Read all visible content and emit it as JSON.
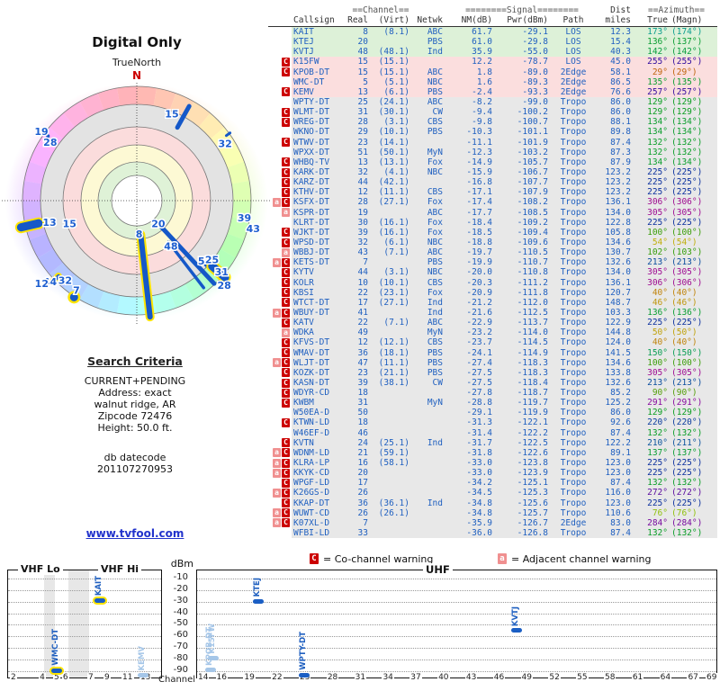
{
  "radar_head": {
    "title": "Digital Only",
    "north_label": "TrueNorth",
    "north_letter": "N"
  },
  "search": {
    "heading": "Search Criteria",
    "lines": [
      "CURRENT+PENDING",
      "Address: exact",
      "walnut ridge, AR",
      "Zipcode 72476",
      "Height: 50.0 ft."
    ],
    "datecode": [
      "db datecode",
      "201107270953"
    ]
  },
  "link": "www.tvfool.com",
  "legend": {
    "co_symbol": "C",
    "co_text": "= Co-channel warning",
    "adj_symbol": "a",
    "adj_text": "= Adjacent channel warning"
  },
  "spectrum": {
    "vhf_lo": "VHF Lo",
    "vhf_hi": "VHF Hi",
    "uhf": "UHF",
    "dbm": "dBm",
    "channel": "Channel"
  },
  "table": {
    "group": {
      "channel": "==Channel==",
      "signal": "========Signal========",
      "dist": "Dist",
      "azimuth": "==Azimuth=="
    },
    "cols": {
      "callsign": "Callsign",
      "real": "Real",
      "virt": "(Virt)",
      "netwk": "Netwk",
      "nm": "NM(dB)",
      "pwr": "Pwr(dBm)",
      "path": "Path",
      "miles": "miles",
      "true": "True",
      "magn": "(Magn)"
    }
  },
  "colors": {
    "text_blue": "#2060c0",
    "faded_blue": "#a5c6e8",
    "marker_blue": "#1a5ec4",
    "marker_outline_yellow": "#ffe400",
    "warn_co_bg": "#cc0000",
    "warn_adj_bg": "#f09090",
    "row_strong": "#ddf1d8",
    "row_weak": "#fbdede",
    "row_deep": "#e8e8e8",
    "link_blue": "#2233cc",
    "north_red": "#cc0000"
  },
  "chart_data": [
    {
      "type": "table",
      "title": "station list",
      "columns": [
        "Callsign",
        "Real",
        "(Virt)",
        "Netwk",
        "NM(dB)",
        "Pwr(dBm)",
        "Path",
        "miles",
        "True",
        "(Magn)",
        "band",
        "warnings"
      ],
      "rows": [
        [
          "KAIT",
          8,
          "8.1",
          "ABC",
          61.7,
          -29.1,
          "LOS",
          12.3,
          173,
          174,
          "s",
          ""
        ],
        [
          "KTEJ",
          20,
          "",
          "PBS",
          61.0,
          -29.8,
          "LOS",
          15.4,
          136,
          137,
          "s",
          ""
        ],
        [
          "KVTJ",
          48,
          "48.1",
          "Ind",
          35.9,
          -55.0,
          "LOS",
          40.3,
          142,
          142,
          "s",
          ""
        ],
        [
          "K15FW",
          15,
          "15.1",
          "",
          12.2,
          -78.7,
          "LOS",
          45.0,
          255,
          255,
          "w",
          "c"
        ],
        [
          "KPOB-DT",
          15,
          "15.1",
          "ABC",
          1.8,
          -89.0,
          "2Edge",
          58.1,
          29,
          29,
          "w",
          "c"
        ],
        [
          "WMC-DT",
          5,
          "5.1",
          "NBC",
          1.6,
          -89.3,
          "2Edge",
          86.5,
          135,
          135,
          "w",
          ""
        ],
        [
          "KEMV",
          13,
          "6.1",
          "PBS",
          -2.4,
          -93.3,
          "2Edge",
          76.6,
          257,
          257,
          "w",
          "c"
        ],
        [
          "WPTY-DT",
          25,
          "24.1",
          "ABC",
          -8.2,
          -99.0,
          "Tropo",
          86.0,
          129,
          129,
          "d",
          ""
        ],
        [
          "WLMT-DT",
          31,
          "30.1",
          "CW",
          -9.4,
          -100.2,
          "Tropo",
          86.0,
          129,
          129,
          "d",
          "c"
        ],
        [
          "WREG-DT",
          28,
          "3.1",
          "CBS",
          -9.8,
          -100.7,
          "Tropo",
          88.1,
          134,
          134,
          "d",
          "c"
        ],
        [
          "WKNO-DT",
          29,
          "10.1",
          "PBS",
          -10.3,
          -101.1,
          "Tropo",
          89.8,
          134,
          134,
          "d",
          ""
        ],
        [
          "WTWV-DT",
          23,
          "14.1",
          "",
          -11.1,
          -101.9,
          "Tropo",
          87.4,
          132,
          132,
          "d",
          "c"
        ],
        [
          "WPXX-DT",
          51,
          "50.1",
          "MyN",
          -12.3,
          -103.2,
          "Tropo",
          87.3,
          132,
          132,
          "d",
          ""
        ],
        [
          "WHBQ-TV",
          13,
          "13.1",
          "Fox",
          -14.9,
          -105.7,
          "Tropo",
          87.9,
          134,
          134,
          "d",
          "c"
        ],
        [
          "KARK-DT",
          32,
          "4.1",
          "NBC",
          -15.9,
          -106.7,
          "Tropo",
          123.2,
          225,
          225,
          "d",
          "c"
        ],
        [
          "KARZ-DT",
          44,
          "42.1",
          "",
          -16.8,
          -107.7,
          "Tropo",
          123.2,
          225,
          225,
          "d",
          "c"
        ],
        [
          "KTHV-DT",
          12,
          "11.1",
          "CBS",
          -17.1,
          -107.9,
          "Tropo",
          123.2,
          225,
          225,
          "d",
          "c"
        ],
        [
          "KSFX-DT",
          28,
          "27.1",
          "Fox",
          -17.4,
          -108.2,
          "Tropo",
          136.1,
          306,
          306,
          "d",
          "ac"
        ],
        [
          "KSPR-DT",
          19,
          "",
          "ABC",
          -17.7,
          -108.5,
          "Tropo",
          134.0,
          305,
          305,
          "d",
          "a"
        ],
        [
          "KLRT-DT",
          30,
          "16.1",
          "Fox",
          -18.4,
          -109.2,
          "Tropo",
          122.8,
          225,
          225,
          "d",
          ""
        ],
        [
          "WJKT-DT",
          39,
          "16.1",
          "Fox",
          -18.5,
          -109.4,
          "Tropo",
          105.8,
          100,
          100,
          "d",
          "c"
        ],
        [
          "WPSD-DT",
          32,
          "6.1",
          "NBC",
          -18.8,
          -109.6,
          "Tropo",
          134.6,
          54,
          54,
          "d",
          "c"
        ],
        [
          "WBBJ-DT",
          43,
          "7.1",
          "ABC",
          -19.7,
          -110.5,
          "Tropo",
          130.7,
          102,
          103,
          "d",
          "a"
        ],
        [
          "KETS-DT",
          7,
          "",
          "PBS",
          -19.9,
          -110.7,
          "Tropo",
          132.6,
          213,
          213,
          "d",
          "ac"
        ],
        [
          "KYTV",
          44,
          "3.1",
          "NBC",
          -20.0,
          -110.8,
          "Tropo",
          134.0,
          305,
          305,
          "d",
          "c"
        ],
        [
          "KOLR",
          10,
          "10.1",
          "CBS",
          -20.3,
          -111.2,
          "Tropo",
          136.1,
          306,
          306,
          "d",
          "c"
        ],
        [
          "KBSI",
          22,
          "23.1",
          "Fox",
          -20.9,
          -111.8,
          "Tropo",
          120.7,
          40,
          40,
          "d",
          "c"
        ],
        [
          "WTCT-DT",
          17,
          "27.1",
          "Ind",
          -21.2,
          -112.0,
          "Tropo",
          148.7,
          46,
          46,
          "d",
          "c"
        ],
        [
          "WBUY-DT",
          41,
          "",
          "Ind",
          -21.6,
          -112.5,
          "Tropo",
          103.3,
          136,
          136,
          "d",
          "ac"
        ],
        [
          "KATV",
          22,
          "7.1",
          "ABC",
          -22.9,
          -113.7,
          "Tropo",
          122.9,
          225,
          225,
          "d",
          "c"
        ],
        [
          "WDKA",
          49,
          "",
          "MyN",
          -23.2,
          -114.0,
          "Tropo",
          144.8,
          50,
          50,
          "d",
          "a"
        ],
        [
          "KFVS-DT",
          12,
          "12.1",
          "CBS",
          -23.7,
          -114.5,
          "Tropo",
          124.0,
          40,
          40,
          "d",
          "c"
        ],
        [
          "WMAV-DT",
          36,
          "18.1",
          "PBS",
          -24.1,
          -114.9,
          "Tropo",
          141.5,
          150,
          150,
          "d",
          "c"
        ],
        [
          "WLJT-DT",
          47,
          "11.1",
          "PBS",
          -27.4,
          -118.3,
          "Tropo",
          134.6,
          100,
          100,
          "d",
          "ac"
        ],
        [
          "KOZK-DT",
          23,
          "21.1",
          "PBS",
          -27.5,
          -118.3,
          "Tropo",
          133.8,
          305,
          305,
          "d",
          "c"
        ],
        [
          "KASN-DT",
          39,
          "38.1",
          "CW",
          -27.5,
          -118.4,
          "Tropo",
          132.6,
          213,
          213,
          "d",
          "c"
        ],
        [
          "WDYR-CD",
          18,
          "",
          "",
          -27.8,
          -118.7,
          "Tropo",
          85.2,
          90,
          90,
          "d",
          "c"
        ],
        [
          "KWBM",
          31,
          "",
          "MyN",
          -28.8,
          -119.7,
          "Tropo",
          125.2,
          291,
          291,
          "d",
          "c"
        ],
        [
          "W50EA-D",
          50,
          "",
          "",
          -29.1,
          -119.9,
          "Tropo",
          86.0,
          129,
          129,
          "d",
          ""
        ],
        [
          "KTWN-LD",
          18,
          "",
          "",
          -31.3,
          -122.1,
          "Tropo",
          92.6,
          220,
          220,
          "d",
          "c"
        ],
        [
          "W46EF-D",
          46,
          "",
          "",
          -31.4,
          -122.2,
          "Tropo",
          87.4,
          132,
          132,
          "d",
          ""
        ],
        [
          "KVTN",
          24,
          "25.1",
          "Ind",
          -31.7,
          -122.5,
          "Tropo",
          122.2,
          210,
          211,
          "d",
          "c"
        ],
        [
          "WDNM-LD",
          21,
          "59.1",
          "",
          -31.8,
          -122.6,
          "Tropo",
          89.1,
          137,
          137,
          "d",
          "ac"
        ],
        [
          "KLRA-LP",
          16,
          "58.1",
          "",
          -33.0,
          -123.8,
          "Tropo",
          123.0,
          225,
          225,
          "d",
          "ac"
        ],
        [
          "KKYK-CD",
          20,
          "",
          "",
          -33.0,
          -123.9,
          "Tropo",
          123.0,
          225,
          225,
          "d",
          "ac"
        ],
        [
          "WPGF-LD",
          17,
          "",
          "",
          -34.2,
          -125.1,
          "Tropo",
          87.4,
          132,
          132,
          "d",
          "c"
        ],
        [
          "K26GS-D",
          26,
          "",
          "",
          -34.5,
          -125.3,
          "Tropo",
          116.0,
          272,
          272,
          "d",
          "ac"
        ],
        [
          "KKAP-DT",
          36,
          "36.1",
          "Ind",
          -34.8,
          -125.6,
          "Tropo",
          123.0,
          225,
          225,
          "d",
          "c"
        ],
        [
          "WUWT-CD",
          26,
          "26.1",
          "",
          -34.8,
          -125.7,
          "Tropo",
          110.6,
          76,
          76,
          "d",
          "ac"
        ],
        [
          "K07XL-D",
          7,
          "",
          "",
          -35.9,
          -126.7,
          "2Edge",
          83.0,
          284,
          284,
          "d",
          "ac"
        ],
        [
          "WFBI-LD",
          33,
          "",
          "",
          -36.0,
          -126.8,
          "Tropo",
          87.4,
          132,
          132,
          "d",
          ""
        ]
      ]
    },
    {
      "type": "radar",
      "title": "Digital Only",
      "rings": {
        "outer": 127,
        "bands": [
          [
            107,
            "#e3e3e3"
          ],
          [
            82,
            "#fbdcdc"
          ],
          [
            62,
            "#fdf9d4"
          ],
          [
            43,
            "#dff2d7"
          ],
          [
            28,
            "#ffffff"
          ]
        ]
      },
      "spokes": [
        {
          "az": 173.5,
          "r0": 38,
          "r1": 130,
          "w": 6,
          "outline": true
        },
        {
          "az": 137,
          "r0": 40,
          "r1": 126,
          "w": 5,
          "outline": false
        },
        {
          "az": 142.5,
          "r0": 58,
          "r1": 122,
          "w": 3.5,
          "outline": false
        },
        {
          "az": 133,
          "r0": 98,
          "r1": 126,
          "w": 3.5,
          "outline": false
        },
        {
          "az": 131,
          "r0": 111,
          "r1": 130,
          "w": 9,
          "outline": true
        },
        {
          "az": 29,
          "r0": 93,
          "r1": 120,
          "w": 5,
          "outline": false
        },
        {
          "az": 257,
          "r0": 112,
          "r1": 132,
          "w": 9,
          "outline": true
        },
        {
          "az": 226,
          "r0": 121,
          "r1": 129,
          "w": 4,
          "outline": true
        },
        {
          "az": 54,
          "r0": 123,
          "r1": 128,
          "w": 3,
          "outline": false
        }
      ],
      "dots": [
        {
          "az": 213,
          "r": 128,
          "rad": 4.5,
          "outline": true
        },
        {
          "az": 100,
          "r": 126,
          "rad": 2.2,
          "outline": false
        },
        {
          "az": 103,
          "r": 133,
          "rad": 2,
          "outline": false
        },
        {
          "az": 305,
          "r": 134,
          "rad": 2,
          "outline": false
        },
        {
          "az": 306,
          "r": 122,
          "rad": 2,
          "outline": false
        }
      ],
      "labels": [
        {
          "t": "15",
          "az": 22,
          "r": 104
        },
        {
          "t": "32",
          "az": 57,
          "r": 117
        },
        {
          "t": "39",
          "az": 99,
          "r": 121
        },
        {
          "t": "43",
          "az": 103.5,
          "r": 133
        },
        {
          "t": "20",
          "az": 137,
          "r": 35
        },
        {
          "t": "48",
          "az": 143,
          "r": 63
        },
        {
          "t": "8",
          "az": 176,
          "r": 37
        },
        {
          "t": "5",
          "az": 133,
          "r": 98
        },
        {
          "t": "25",
          "az": 128,
          "r": 106
        },
        {
          "t": "31",
          "az": 130,
          "r": 123
        },
        {
          "t": "28",
          "az": 134,
          "r": 135
        },
        {
          "t": "7",
          "az": 214,
          "r": 120
        },
        {
          "t": "32",
          "az": 222,
          "r": 119
        },
        {
          "t": "44",
          "az": 227,
          "r": 132
        },
        {
          "t": "12",
          "az": 229,
          "r": 140
        },
        {
          "t": "13",
          "az": 256,
          "r": 100
        },
        {
          "t": "15",
          "az": 251,
          "r": 79
        },
        {
          "t": "28",
          "az": 304,
          "r": 116
        },
        {
          "t": "19",
          "az": 306,
          "r": 131
        }
      ]
    },
    {
      "type": "scatter",
      "band": "VHF",
      "ylabel": "dBm",
      "ylim": [
        -3,
        -95.5
      ],
      "yticks": [
        -10,
        -20,
        -30,
        -40,
        -50,
        -60,
        -70,
        -80,
        -90
      ],
      "x_ticks": [
        [
          2,
          0.035
        ],
        [
          4,
          0.224
        ],
        [
          5,
          0.318
        ],
        [
          6,
          0.376
        ],
        [
          7,
          0.541
        ],
        [
          9,
          0.647
        ],
        [
          11,
          0.765
        ],
        [
          13,
          0.882
        ]
      ],
      "gaps": [
        [
          0.235,
          0.305
        ],
        [
          0.395,
          0.527
        ]
      ],
      "points": [
        {
          "call": "WMC-DT",
          "ch": 5,
          "f": 0.318,
          "dbm": -89.3,
          "outline": true,
          "faded": false
        },
        {
          "call": "KAIT",
          "ch": 8,
          "f": 0.6,
          "dbm": -29.1,
          "outline": true,
          "faded": false
        },
        {
          "call": "KEMV",
          "ch": 13,
          "f": 0.882,
          "dbm": -93.3,
          "outline": false,
          "faded": true
        }
      ]
    },
    {
      "type": "scatter",
      "band": "UHF",
      "ch_min": 14,
      "ch_max": 69,
      "x_ticks": [
        14,
        16,
        19,
        22,
        25,
        28,
        31,
        34,
        37,
        40,
        43,
        46,
        49,
        52,
        55,
        58,
        61,
        64,
        67,
        69
      ],
      "points": [
        {
          "call": "KPOB-DT",
          "ch": 15,
          "dbm": -89.0,
          "outline": false,
          "faded": true
        },
        {
          "call": "K15FW",
          "ch": 15,
          "dbm": -78.7,
          "outline": false,
          "faded": true
        },
        {
          "call": "KTEJ",
          "ch": 20,
          "dbm": -29.8,
          "outline": false,
          "faded": false
        },
        {
          "call": "WPTY-DT",
          "ch": 25,
          "dbm": -99.0,
          "outline": false,
          "faded": false
        },
        {
          "call": "KVTJ",
          "ch": 48,
          "dbm": -55.0,
          "outline": false,
          "faded": false
        }
      ]
    }
  ]
}
